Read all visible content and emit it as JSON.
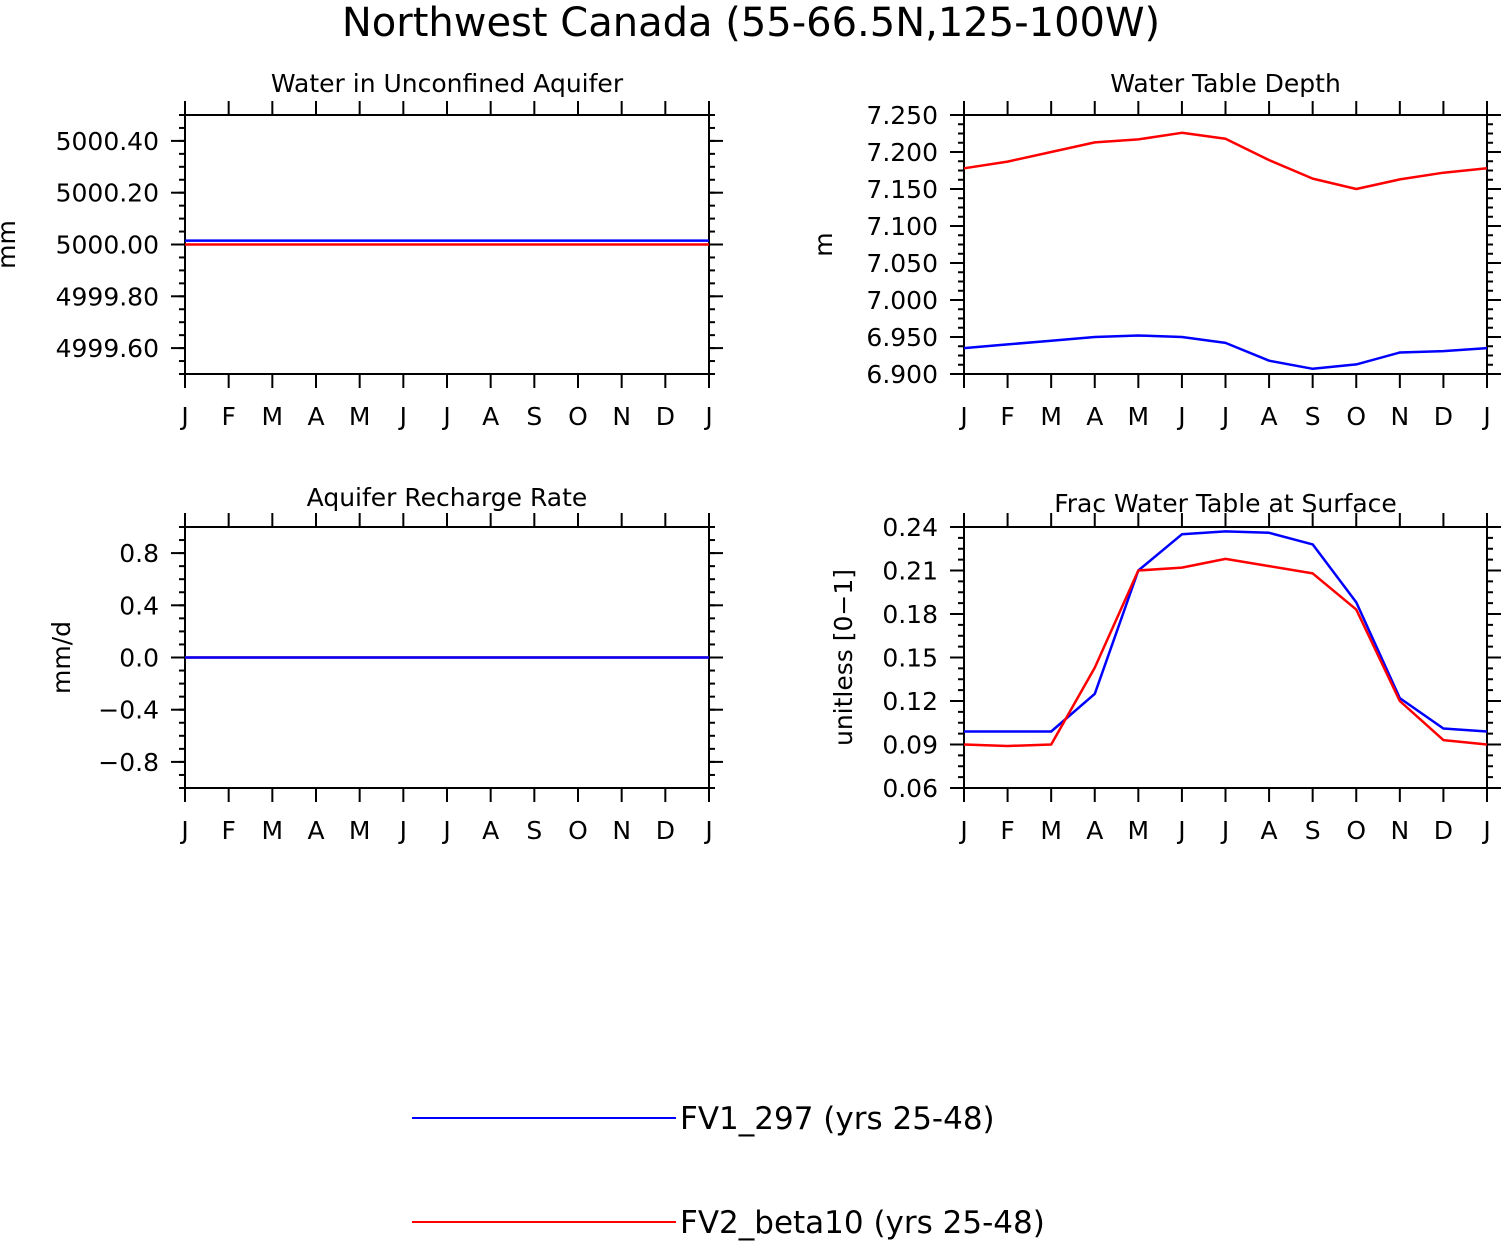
{
  "title": "Northwest Canada (55-66.5N,125-100W)",
  "colors": {
    "series1": "#0000ff",
    "series2": "#ff0000",
    "axis": "#000000"
  },
  "legend": {
    "items": [
      {
        "label": "FV1_297 (yrs 25-48)",
        "color": "#0000ff"
      },
      {
        "label": "FV2_beta10 (yrs 25-48)",
        "color": "#ff0000"
      }
    ]
  },
  "chart_data": [
    {
      "type": "line",
      "title": "Water in Unconfined Aquifer",
      "ylabel": "mm",
      "xlabel": "",
      "categories": [
        "J",
        "F",
        "M",
        "A",
        "M",
        "J",
        "J",
        "A",
        "S",
        "O",
        "N",
        "D",
        "J"
      ],
      "ylim": [
        4999.5,
        5000.5
      ],
      "yticks": [
        4999.6,
        4999.8,
        5000.0,
        5000.2,
        5000.4
      ],
      "ytick_labels": [
        "4999.60",
        "4999.80",
        "5000.00",
        "5000.20",
        "5000.40"
      ],
      "series": [
        {
          "name": "FV1_297 (yrs 25-48)",
          "color": "#0000ff",
          "values": [
            5000.015,
            5000.015,
            5000.015,
            5000.015,
            5000.015,
            5000.015,
            5000.015,
            5000.015,
            5000.015,
            5000.015,
            5000.015,
            5000.015,
            5000.015
          ]
        },
        {
          "name": "FV2_beta10 (yrs 25-48)",
          "color": "#ff0000",
          "values": [
            5000.0,
            5000.0,
            5000.0,
            5000.0,
            5000.0,
            5000.0,
            5000.0,
            5000.0,
            5000.0,
            5000.0,
            5000.0,
            5000.0,
            5000.0
          ]
        }
      ]
    },
    {
      "type": "line",
      "title": "Water Table Depth",
      "ylabel": "m",
      "xlabel": "",
      "categories": [
        "J",
        "F",
        "M",
        "A",
        "M",
        "J",
        "J",
        "A",
        "S",
        "O",
        "N",
        "D",
        "J"
      ],
      "ylim": [
        6.9,
        7.25
      ],
      "yticks": [
        6.9,
        6.95,
        7.0,
        7.05,
        7.1,
        7.15,
        7.2,
        7.25
      ],
      "ytick_labels": [
        "6.900",
        "6.950",
        "7.000",
        "7.050",
        "7.100",
        "7.150",
        "7.200",
        "7.250"
      ],
      "series": [
        {
          "name": "FV1_297 (yrs 25-48)",
          "color": "#0000ff",
          "values": [
            6.935,
            6.94,
            6.945,
            6.95,
            6.952,
            6.95,
            6.942,
            6.918,
            6.907,
            6.913,
            6.929,
            6.931,
            6.935
          ]
        },
        {
          "name": "FV2_beta10 (yrs 25-48)",
          "color": "#ff0000",
          "values": [
            7.178,
            7.187,
            7.2,
            7.213,
            7.217,
            7.226,
            7.218,
            7.189,
            7.164,
            7.15,
            7.163,
            7.172,
            7.178
          ]
        }
      ]
    },
    {
      "type": "line",
      "title": "Aquifer Recharge Rate",
      "ylabel": "mm/d",
      "xlabel": "",
      "categories": [
        "J",
        "F",
        "M",
        "A",
        "M",
        "J",
        "J",
        "A",
        "S",
        "O",
        "N",
        "D",
        "J"
      ],
      "ylim": [
        -1.0,
        1.0
      ],
      "yticks": [
        -0.8,
        -0.4,
        0.0,
        0.4,
        0.8
      ],
      "ytick_labels": [
        "−0.8",
        "−0.4",
        "0.0",
        "0.4",
        "0.8"
      ],
      "series": [
        {
          "name": "FV2_beta10 (yrs 25-48)",
          "color": "#ff0000",
          "values": [
            0,
            0,
            0,
            0,
            0,
            0,
            0,
            0,
            0,
            0,
            0,
            0,
            0
          ]
        },
        {
          "name": "FV1_297 (yrs 25-48)",
          "color": "#0000ff",
          "values": [
            0,
            0,
            0,
            0,
            0,
            0,
            0,
            0,
            0,
            0,
            0,
            0,
            0
          ]
        }
      ]
    },
    {
      "type": "line",
      "title": "Frac Water Table at Surface",
      "ylabel": "unitless [0−1]",
      "xlabel": "",
      "categories": [
        "J",
        "F",
        "M",
        "A",
        "M",
        "J",
        "J",
        "A",
        "S",
        "O",
        "N",
        "D",
        "J"
      ],
      "ylim": [
        0.06,
        0.24
      ],
      "yticks": [
        0.06,
        0.09,
        0.12,
        0.15,
        0.18,
        0.21,
        0.24
      ],
      "ytick_labels": [
        "0.06",
        "0.09",
        "0.12",
        "0.15",
        "0.18",
        "0.21",
        "0.24"
      ],
      "series": [
        {
          "name": "FV1_297 (yrs 25-48)",
          "color": "#0000ff",
          "values": [
            0.099,
            0.099,
            0.099,
            0.125,
            0.21,
            0.235,
            0.237,
            0.236,
            0.228,
            0.188,
            0.122,
            0.101,
            0.099
          ]
        },
        {
          "name": "FV2_beta10 (yrs 25-48)",
          "color": "#ff0000",
          "values": [
            0.09,
            0.089,
            0.09,
            0.143,
            0.21,
            0.212,
            0.218,
            0.213,
            0.208,
            0.183,
            0.12,
            0.093,
            0.09
          ]
        }
      ]
    }
  ]
}
